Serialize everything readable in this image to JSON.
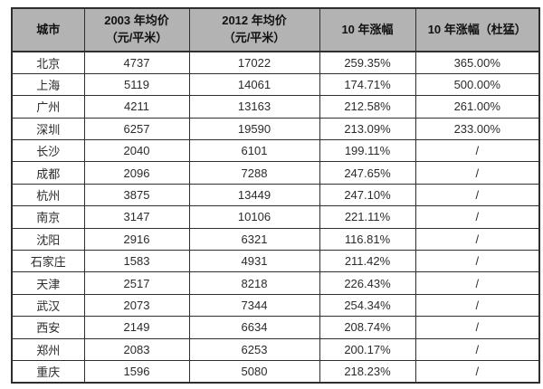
{
  "table": {
    "headers": {
      "city": "城市",
      "h2003_line1": "2003 年均价",
      "h2003_line2": "（元/平米）",
      "h2012_line1": "2012 年均价",
      "h2012_line2": "（元/平米）",
      "growth": "10 年涨幅",
      "growth_dumeng": "10 年涨幅（杜猛）"
    },
    "rows": [
      [
        "北京",
        "4737",
        "17022",
        "259.35%",
        "365.00%"
      ],
      [
        "上海",
        "5119",
        "14061",
        "174.71%",
        "500.00%"
      ],
      [
        "广州",
        "4211",
        "13163",
        "212.58%",
        "261.00%"
      ],
      [
        "深圳",
        "6257",
        "19590",
        "213.09%",
        "233.00%"
      ],
      [
        "长沙",
        "2040",
        "6101",
        "199.11%",
        "/"
      ],
      [
        "成都",
        "2096",
        "7288",
        "247.65%",
        "/"
      ],
      [
        "杭州",
        "3875",
        "13449",
        "247.10%",
        "/"
      ],
      [
        "南京",
        "3147",
        "10106",
        "221.11%",
        "/"
      ],
      [
        "沈阳",
        "2916",
        "6321",
        "116.81%",
        "/"
      ],
      [
        "石家庄",
        "1583",
        "4931",
        "211.42%",
        "/"
      ],
      [
        "天津",
        "2517",
        "8218",
        "226.43%",
        "/"
      ],
      [
        "武汉",
        "2073",
        "7344",
        "254.34%",
        "/"
      ],
      [
        "西安",
        "2149",
        "6634",
        "208.74%",
        "/"
      ],
      [
        "郑州",
        "2083",
        "6253",
        "200.17%",
        "/"
      ],
      [
        "重庆",
        "1596",
        "5080",
        "218.23%",
        "/"
      ]
    ],
    "colors": {
      "header_bg": "#b3b3b3",
      "border": "#2e2e2e",
      "text": "#2b2b2b"
    }
  }
}
